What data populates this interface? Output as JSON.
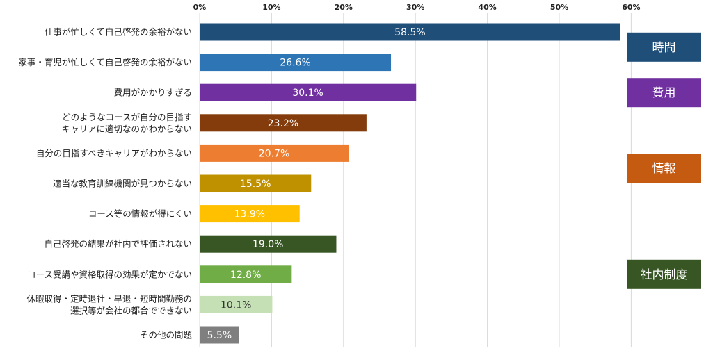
{
  "chart_data": {
    "type": "bar",
    "orientation": "horizontal",
    "xlim": [
      0,
      70
    ],
    "ticks": [
      0,
      10,
      20,
      30,
      40,
      50,
      60
    ],
    "tick_labels": [
      "0%",
      "10%",
      "20%",
      "30%",
      "40%",
      "50%",
      "60%"
    ],
    "grid": true,
    "categories": [
      [
        "仕事が忙しくて自己啓発の余裕がない"
      ],
      [
        "家事・育児が忙しくて自己啓発の余裕がない"
      ],
      [
        "費用がかかりすぎる"
      ],
      [
        "どのようなコースが自分の目指す",
        "キャリアに適切なのかわからない"
      ],
      [
        "自分の目指すべきキャリアがわからない"
      ],
      [
        "適当な教育訓練機関が見つからない"
      ],
      [
        "コース等の情報が得にくい"
      ],
      [
        "自己啓発の結果が社内で評価されない"
      ],
      [
        "コース受講や資格取得の効果が定かでない"
      ],
      [
        "休暇取得・定時退社・早退・短時間勤務の",
        "選択等が会社の都合でできない"
      ],
      [
        "その他の問題"
      ]
    ],
    "values": [
      58.5,
      26.6,
      30.1,
      23.2,
      20.7,
      15.5,
      13.9,
      19.0,
      12.8,
      10.1,
      5.5
    ],
    "value_labels": [
      "58.5%",
      "26.6%",
      "30.1%",
      "23.2%",
      "20.7%",
      "15.5%",
      "13.9%",
      "19.0%",
      "12.8%",
      "10.1%",
      "5.5%"
    ],
    "bar_colors": [
      "#1f4e79",
      "#2e75b6",
      "#7030a0",
      "#843c0c",
      "#ed7d31",
      "#bf9000",
      "#ffc000",
      "#375623",
      "#70ad47",
      "#c5e0b4",
      "#7f7f7f"
    ],
    "label_dark": [
      false,
      false,
      false,
      false,
      false,
      false,
      false,
      false,
      false,
      true,
      false
    ],
    "groups": [
      {
        "label": "時間",
        "color": "#1f4e79",
        "rows": [
          0,
          1
        ]
      },
      {
        "label": "費用",
        "color": "#7030a0",
        "rows": [
          2,
          2
        ]
      },
      {
        "label": "情報",
        "color": "#c55a11",
        "rows": [
          3,
          6
        ]
      },
      {
        "label": "社内制度",
        "color": "#375623",
        "rows": [
          7,
          9
        ]
      }
    ]
  }
}
